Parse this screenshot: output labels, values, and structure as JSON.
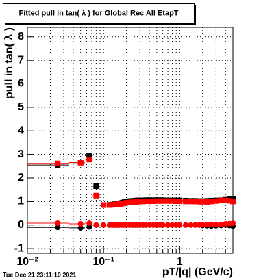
{
  "chart_data": {
    "type": "scatter",
    "title": "Fitted pull in tan( λ ) for Global Rec All EtapT",
    "x_label": "pT/|q| (GeV/c)",
    "y_label": "pull in tan( λ )",
    "timestamp": "Tue Dec 21 23:11:10 2021",
    "x_log": true,
    "grid": true,
    "xlim": [
      0.01,
      5
    ],
    "xticks": [
      {
        "value": 0.01,
        "label": "10⁻²"
      },
      {
        "value": 0.1,
        "label": "10⁻¹"
      },
      1
    ],
    "xminorticks": [
      0.02,
      0.03,
      0.04,
      0.05,
      0.06,
      0.07,
      0.08,
      0.09,
      0.2,
      0.3,
      0.4,
      0.5,
      0.6,
      0.7,
      0.8,
      0.9,
      2,
      3,
      4,
      5
    ],
    "ylim": [
      -1.2,
      8.4
    ],
    "yticks": [
      -1,
      0,
      1,
      2,
      3,
      4,
      5,
      6,
      7,
      8
    ],
    "x": [
      0.025,
      0.05,
      0.065,
      0.08,
      0.1,
      0.12,
      0.13,
      0.14,
      0.15,
      0.16,
      0.17,
      0.18,
      0.19,
      0.2,
      0.22,
      0.24,
      0.26,
      0.28,
      0.3,
      0.33,
      0.36,
      0.4,
      0.45,
      0.5,
      0.55,
      0.6,
      0.7,
      0.8,
      0.9,
      1,
      1.2,
      1.4,
      1.6,
      1.8,
      2,
      2.3,
      2.6,
      3,
      3.5,
      4,
      4.5,
      5
    ],
    "series": [
      {
        "color": "#000000",
        "marker": "square",
        "values": [
          2.55,
          2.65,
          2.95,
          1.65,
          0.85,
          0.86,
          0.87,
          0.88,
          0.9,
          0.92,
          0.94,
          0.96,
          0.98,
          1.0,
          1.02,
          1.03,
          1.04,
          1.05,
          1.05,
          1.05,
          1.06,
          1.06,
          1.06,
          1.06,
          1.06,
          1.06,
          1.05,
          1.05,
          1.05,
          1.05,
          1.04,
          1.03,
          1.03,
          1.02,
          1.02,
          1.03,
          1.04,
          1.05,
          1.06,
          1.08,
          1.1,
          1.12
        ]
      },
      {
        "color": "#000000",
        "marker": "circle",
        "values": [
          -0.1,
          -0.12,
          -0.08,
          0,
          0,
          0,
          0,
          0,
          0,
          0,
          0,
          0,
          0,
          0,
          0,
          0,
          0,
          0,
          0,
          0,
          0,
          0,
          0,
          0,
          0,
          0,
          0,
          0,
          0,
          0,
          0,
          0,
          0,
          0,
          -0.02,
          -0.03,
          -0.04,
          -0.03,
          -0.02,
          0,
          -0.02,
          -0.05
        ]
      },
      {
        "color": "#ff0000",
        "marker": "square",
        "values": [
          2.62,
          2.65,
          2.78,
          1.25,
          0.85,
          0.85,
          0.86,
          0.87,
          0.88,
          0.89,
          0.9,
          0.92,
          0.93,
          0.95,
          0.96,
          0.97,
          0.98,
          0.99,
          1.0,
          1.0,
          1.01,
          1.01,
          1.01,
          1.02,
          1.02,
          1.02,
          1.02,
          1.02,
          1.01,
          1.01,
          1.0,
          1.0,
          1.0,
          0.99,
          0.99,
          0.98,
          1.0,
          1.02,
          1.05,
          1.05,
          1.03,
          1.0
        ]
      },
      {
        "color": "#ff0000",
        "marker": "circle",
        "values": [
          0.08,
          0.05,
          0.08,
          0,
          0,
          0,
          0,
          0,
          0,
          0,
          0,
          0,
          0,
          0,
          0,
          0,
          0,
          0,
          0,
          0,
          0,
          0,
          0,
          0,
          0,
          0,
          0,
          0,
          0,
          0,
          0,
          0,
          0,
          0,
          0.01,
          0.02,
          0.03,
          0.02,
          0.03,
          0.05,
          0.06,
          0.08
        ]
      }
    ]
  }
}
